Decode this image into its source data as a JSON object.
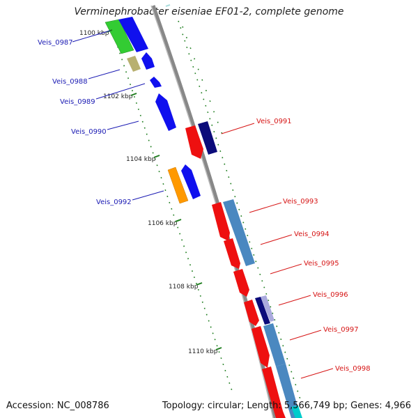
{
  "title": "Verminephrobacter eiseniae EF01-2, complete genome",
  "footer": {
    "accession": "Accession: NC_008786",
    "summary": "Topology: circular; Length: 5,566,749 bp; Genes: 4,966"
  },
  "scale_marks": [
    "1100 kbp",
    "1102 kbp",
    "1104 kbp",
    "1106 kbp",
    "1108 kbp",
    "1110 kbp"
  ],
  "genes_left": [
    "Veis_0987",
    "Veis_0988",
    "Veis_0989",
    "Veis_0990",
    "Veis_0992"
  ],
  "genes_right": [
    "Veis_0991",
    "Veis_0993",
    "Veis_0994",
    "Veis_0995",
    "Veis_0996",
    "Veis_0997",
    "Veis_0998"
  ],
  "colors": {
    "left_label": "#1a1ab3",
    "right_label": "#d61414",
    "backbone": "#888888",
    "tick": "#1e7d1e",
    "feature_blue": "#1010ee",
    "feature_red": "#ee1010",
    "feature_steel": "#4a88c0",
    "feature_navy": "#0b0b7a",
    "feature_green": "#33cc33",
    "feature_khaki": "#b8b070",
    "feature_orange": "#ff9900",
    "feature_cyan": "#00cccc"
  }
}
